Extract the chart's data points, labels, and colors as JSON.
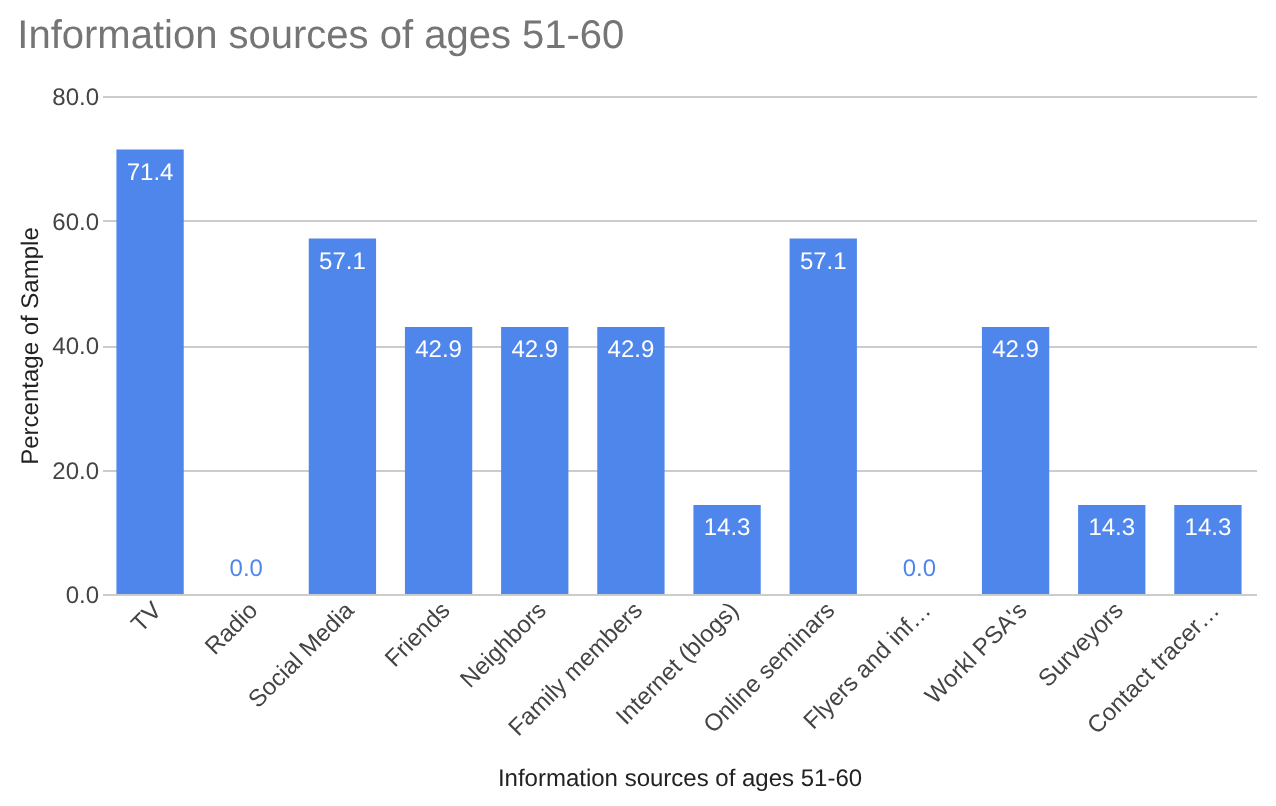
{
  "chart_data": {
    "type": "bar",
    "title": "Information sources of ages 51-60",
    "xlabel": "Information sources of ages 51-60",
    "ylabel": "Percentage of Sample",
    "categories": [
      "TV",
      "Radio",
      "Social Media",
      "Friends",
      "Neighbors",
      "Family members",
      "Internet (blogs)",
      "Online seminars",
      "Flyers and inf…",
      "Workl PSA's",
      "Surveyors",
      "Contact tracer…"
    ],
    "values": [
      71.4,
      0,
      57.1,
      42.9,
      42.9,
      42.9,
      14.3,
      57.1,
      0,
      42.9,
      14.3,
      14.3
    ],
    "value_labels": [
      "71.4",
      "0.0",
      "57.1",
      "42.9",
      "42.9",
      "42.9",
      "14.3",
      "57.1",
      "0.0",
      "42.9",
      "14.3",
      "14.3"
    ],
    "color": "#4f86ec",
    "ylim": [
      0,
      80
    ],
    "yticks": [
      {
        "value": 0,
        "label": "0.0"
      },
      {
        "value": 20,
        "label": "20.0"
      },
      {
        "value": 40,
        "label": "40.0"
      },
      {
        "value": 60,
        "label": "60.0"
      },
      {
        "value": 80,
        "label": "80.0"
      }
    ],
    "grid": "y"
  }
}
